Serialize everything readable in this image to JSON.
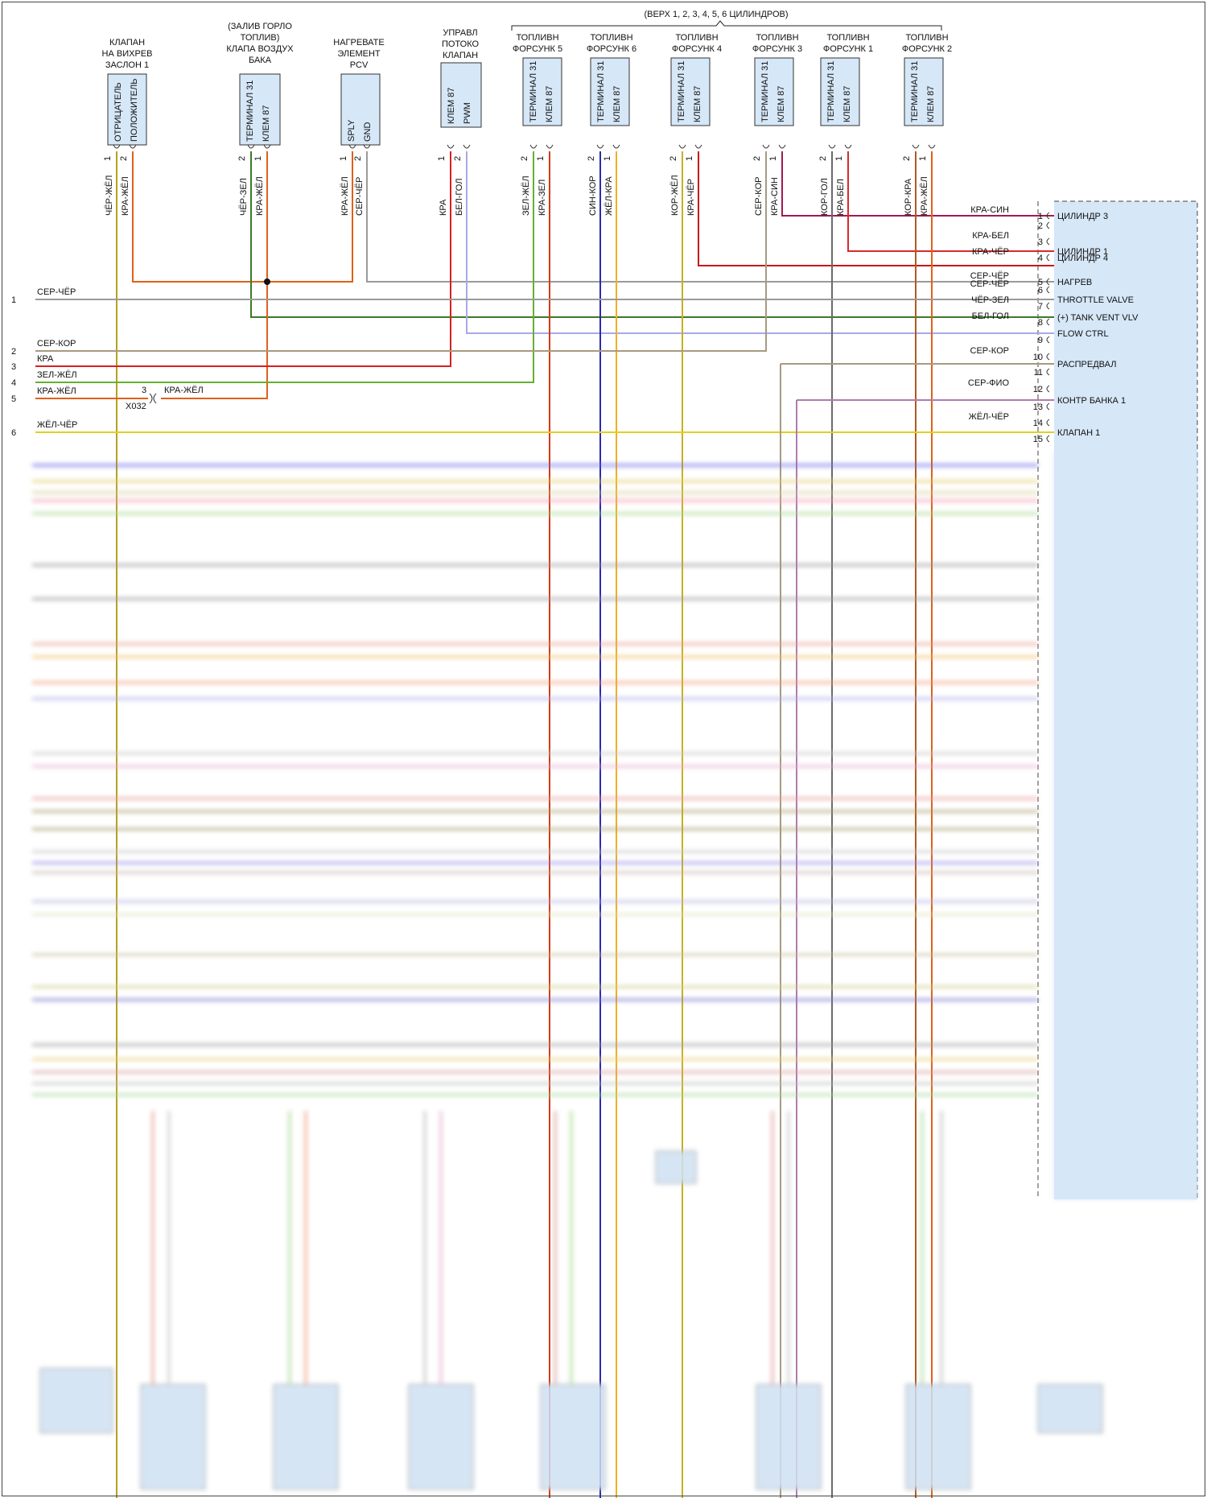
{
  "cylinders_header": "(ВЕРХ 1, 2, 3, 4, 5, 6 ЦИЛИНДРОВ)",
  "components": {
    "swirl_valve": {
      "title": [
        "КЛАПАН",
        "НА ВИХРЕВ",
        "ЗАСЛОН 1"
      ],
      "pins": [
        "ОТРИЦАТЕЛЬ",
        "ПОЛОЖИТЕЛЬ"
      ]
    },
    "filler_valve": {
      "title": [
        "(ЗАЛИВ ГОРЛО",
        "ТОПЛИВ)",
        "КЛАПА ВОЗДУХ",
        "БАКА"
      ],
      "pins": [
        "ТЕРМИНАЛ 31",
        "КЛЕМ 87"
      ]
    },
    "pcv_heater": {
      "title": [
        "НАГРЕВАТЕ",
        "ЭЛЕМЕНТ",
        "PCV"
      ],
      "pins": [
        "SPLY",
        "GND"
      ]
    },
    "flow_valve": {
      "title": [
        "УПРАВЛ",
        "ПОТОКО",
        "КЛАПАН"
      ],
      "pins": [
        "КЛЕМ 87",
        "PWM"
      ]
    },
    "injectors": [
      {
        "title": [
          "ТОПЛИВН",
          "ФОРСУНК 5"
        ],
        "pins": [
          "ТЕРМИНАЛ 31",
          "КЛЕМ 87"
        ]
      },
      {
        "title": [
          "ТОПЛИВН",
          "ФОРСУНК 6"
        ],
        "pins": [
          "ТЕРМИНАЛ 31",
          "КЛЕМ 87"
        ]
      },
      {
        "title": [
          "ТОПЛИВН",
          "ФОРСУНК 4"
        ],
        "pins": [
          "ТЕРМИНАЛ 31",
          "КЛЕМ 87"
        ]
      },
      {
        "title": [
          "ТОПЛИВН",
          "ФОРСУНК 3"
        ],
        "pins": [
          "ТЕРМИНАЛ 31",
          "КЛЕМ 87"
        ]
      },
      {
        "title": [
          "ТОПЛИВН",
          "ФОРСУНК 1"
        ],
        "pins": [
          "ТЕРМИНАЛ 31",
          "КЛЕМ 87"
        ]
      },
      {
        "title": [
          "ТОПЛИВН",
          "ФОРСУНК 2"
        ],
        "pins": [
          "ТЕРМИНАЛ 31",
          "КЛЕМ 87"
        ]
      }
    ]
  },
  "pin_numbers": [
    "1",
    "2"
  ],
  "vertical_wires": [
    {
      "label": "ЧЁР-ЖЁЛ",
      "pin": "1",
      "color": "#b8a020"
    },
    {
      "label": "КРА-ЖЁЛ",
      "pin": "2",
      "color": "#e0601a"
    },
    {
      "label": "ЧЁР-ЗЕЛ",
      "pin": "2",
      "color": "#3a7a2a"
    },
    {
      "label": "КРА-ЖЁЛ",
      "pin": "1",
      "color": "#e0601a"
    },
    {
      "label": "КРА-ЖЁЛ",
      "pin": "1",
      "color": "#e0601a"
    },
    {
      "label": "СЕР-ЧЁР",
      "pin": "2",
      "color": "#9a9a9a"
    },
    {
      "label": "КРА",
      "pin": "1",
      "color": "#d42020"
    },
    {
      "label": "БЕЛ-ГОЛ",
      "pin": "2",
      "color": "#a8a8e8"
    },
    {
      "label": "ЗЕЛ-ЖЁЛ",
      "pin": "2",
      "color": "#66b030"
    },
    {
      "label": "КРА-ЗЕЛ",
      "pin": "1",
      "color": "#d43a10"
    },
    {
      "label": "СИН-КОР",
      "pin": "2",
      "color": "#2a2ab0"
    },
    {
      "label": "ЖЁЛ-КРА",
      "pin": "1",
      "color": "#f0b020"
    },
    {
      "label": "КОР-ЖЁЛ",
      "pin": "2",
      "color": "#c8b020"
    },
    {
      "label": "КРА-ЧЁР",
      "pin": "1",
      "color": "#c81818"
    },
    {
      "label": "СЕР-КОР",
      "pin": "2",
      "color": "#a89a80"
    },
    {
      "label": "КРА-СИН",
      "pin": "1",
      "color": "#a01a50"
    },
    {
      "label": "КОР-ГОЛ",
      "pin": "2",
      "color": "#6a6a6a"
    },
    {
      "label": "КРА-БЕЛ",
      "pin": "1",
      "color": "#d82a2a"
    },
    {
      "label": "КОР-КРА",
      "pin": "2",
      "color": "#b05a20"
    },
    {
      "label": "КРА-ЖЁЛ",
      "pin": "1",
      "color": "#e0601a"
    }
  ],
  "left_rows": [
    {
      "num": "1",
      "label": "СЕР-ЧЁР",
      "color": "#9a9a9a"
    },
    {
      "num": "2",
      "label": "СЕР-КОР",
      "color": "#a89a80"
    },
    {
      "num": "3",
      "label": "КРА",
      "color": "#d42020"
    },
    {
      "num": "4",
      "label": "ЗЕЛ-ЖЁЛ",
      "color": "#66b030"
    },
    {
      "num": "5",
      "label": "КРА-ЖЁЛ",
      "color": "#e0601a"
    },
    {
      "num": "6",
      "label": "ЖЁЛ-ЧЁР",
      "color": "#e0d020"
    }
  ],
  "connector": {
    "name": "X032",
    "pin": "3",
    "label": "КРА-ЖЁЛ"
  },
  "ecu_pins": [
    {
      "num": "1",
      "wire": "КРА-СИН",
      "func": "ЦИЛИНДР 3"
    },
    {
      "num": "2",
      "wire": "",
      "func": ""
    },
    {
      "num": "3",
      "wire": "КРА-БЕЛ",
      "func": ""
    },
    {
      "num": "",
      "wire": "",
      "func": "ЦИЛИНДР 1"
    },
    {
      "num": "4",
      "wire": "КРА-ЧЁР",
      "func": "ЦИЛИНДР 4"
    },
    {
      "num": "5",
      "wire": "СЕР-ЧЁР",
      "func": "НАГРЕВ"
    },
    {
      "num": "6",
      "wire": "СЕР-ЧЁР",
      "func": ""
    },
    {
      "num": "",
      "wire": "",
      "func": "THROTTLE VALVE"
    },
    {
      "num": "7",
      "wire": "ЧЁР-ЗЕЛ",
      "func": ""
    },
    {
      "num": "",
      "wire": "",
      "func": "(+) TANK VENT VLV"
    },
    {
      "num": "8",
      "wire": "БЕЛ-ГОЛ",
      "func": ""
    },
    {
      "num": "",
      "wire": "",
      "func": "FLOW CTRL"
    },
    {
      "num": "9",
      "wire": "",
      "func": ""
    },
    {
      "num": "10",
      "wire": "СЕР-КОР",
      "func": ""
    },
    {
      "num": "",
      "wire": "",
      "func": "РАСПРЕДВАЛ"
    },
    {
      "num": "11",
      "wire": "",
      "func": ""
    },
    {
      "num": "12",
      "wire": "СЕР-ФИО",
      "func": ""
    },
    {
      "num": "",
      "wire": "",
      "func": "КОНТР БАНКА 1"
    },
    {
      "num": "13",
      "wire": "",
      "func": ""
    },
    {
      "num": "14",
      "wire": "ЖЁЛ-ЧЁР",
      "func": ""
    },
    {
      "num": "",
      "wire": "",
      "func": "КЛАПАН 1"
    },
    {
      "num": "15",
      "wire": "",
      "func": ""
    }
  ]
}
